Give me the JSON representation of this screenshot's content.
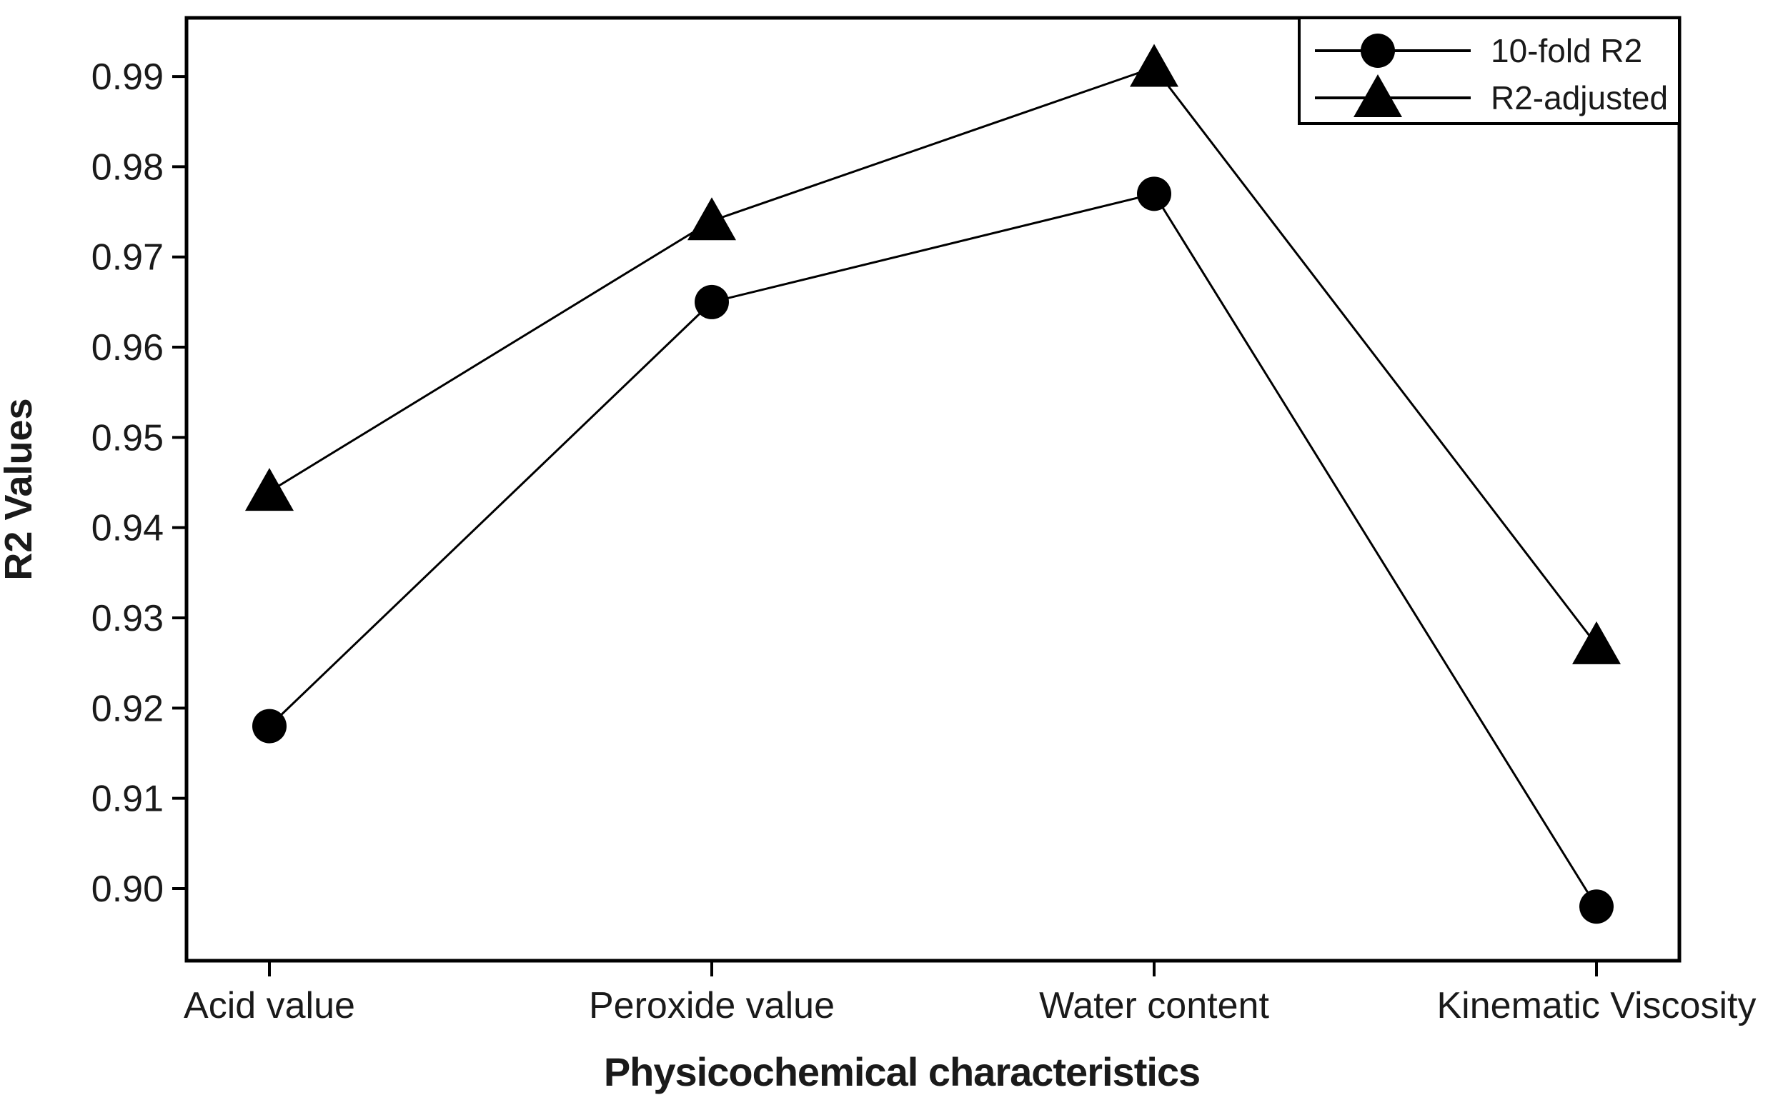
{
  "chart_data": {
    "type": "line",
    "title": "",
    "categories": [
      "Acid value",
      "Peroxide value",
      "Water content",
      "Kinematic Viscosity"
    ],
    "series": [
      {
        "name": "10-fold R2",
        "marker": "circle",
        "values": [
          0.918,
          0.965,
          0.977,
          0.898
        ]
      },
      {
        "name": "R2-adjusted",
        "marker": "triangle",
        "values": [
          0.944,
          0.974,
          0.991,
          0.927
        ]
      }
    ],
    "xlabel": "Physicochemical characteristics",
    "ylabel": "R2 Values",
    "ylim": [
      0.892,
      0.9965
    ],
    "yticks": [
      "0.90",
      "0.91",
      "0.92",
      "0.93",
      "0.94",
      "0.95",
      "0.96",
      "0.97",
      "0.98",
      "0.99"
    ],
    "grid": false,
    "legend_position": "top-right",
    "colors": {
      "line": "#000000",
      "marker": "#000000",
      "axis": "#000000",
      "text": "#1a1a1a",
      "background": "#ffffff"
    }
  }
}
